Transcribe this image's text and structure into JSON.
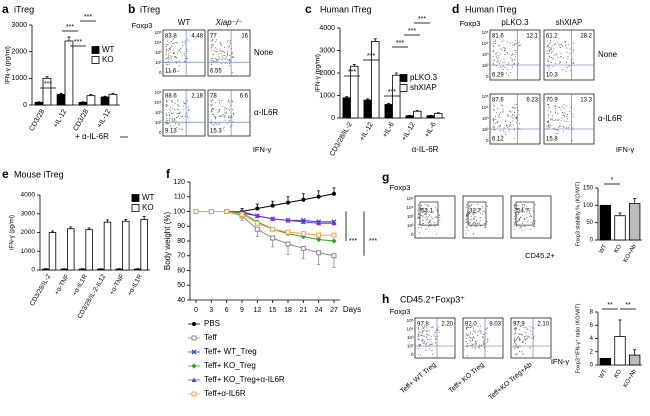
{
  "chart_data": [
    {
      "type": "bar",
      "panel": "a",
      "title": "iTreg",
      "y_label": "IFN-γ (pg/ml)",
      "categories": [
        "CD3/28",
        "+IL-12",
        "CD3/28",
        "+IL-12"
      ],
      "group_label": "+ α-IL-6R",
      "series": [
        {
          "name": "WT",
          "color": "#000000",
          "values": [
            100,
            400,
            100,
            300
          ],
          "errors": [
            20,
            40,
            20,
            30
          ]
        },
        {
          "name": "KO",
          "color": "#ffffff",
          "values": [
            1000,
            2400,
            350,
            400
          ],
          "errors": [
            60,
            150,
            40,
            40
          ]
        }
      ],
      "ylim": [
        0,
        3000
      ],
      "yticks": [
        0,
        1000,
        2000,
        3000
      ],
      "annotations": [
        "***",
        "***",
        "***",
        "***"
      ]
    },
    {
      "type": "bar",
      "panel": "c",
      "title": "Human iTreg",
      "y_label": "IFN-γ (pg/ml)",
      "categories": [
        "CD3/28/IL-2",
        "+IL-12",
        "+IL-6",
        "+IL-12",
        "+IL-6"
      ],
      "group_label": "α-IL-6R",
      "series": [
        {
          "name": "pLKO.3",
          "color": "#000000",
          "values": [
            900,
            800,
            600,
            100,
            100
          ],
          "errors": [
            50,
            50,
            50,
            20,
            20
          ]
        },
        {
          "name": "shXIAP",
          "color": "#ffffff",
          "values": [
            2300,
            3400,
            1900,
            300,
            200
          ],
          "errors": [
            80,
            120,
            100,
            30,
            30
          ]
        }
      ],
      "ylim": [
        0,
        4000
      ],
      "yticks": [
        0,
        1000,
        2000,
        3000,
        4000
      ],
      "annotations": [
        "***",
        "***",
        "***",
        "***",
        "***",
        "***"
      ]
    },
    {
      "type": "bar",
      "panel": "e",
      "title": "Mouse iTreg",
      "y_label": "IFN-γ (pg/ml)",
      "categories": [
        "CD3/28/IL-2",
        "+α-TNF",
        "+α-IL1R",
        "CD3/28/IL-2-IL12",
        "+α-TNF",
        "+α-IL1R"
      ],
      "series": [
        {
          "name": "WT",
          "color": "#000000",
          "values": [
            50,
            50,
            50,
            50,
            50,
            50
          ],
          "errors": [
            20,
            20,
            20,
            20,
            20,
            20
          ]
        },
        {
          "name": "KO",
          "color": "#ffffff",
          "values": [
            2000,
            2200,
            2150,
            2550,
            2600,
            2700
          ],
          "errors": [
            80,
            100,
            90,
            120,
            100,
            150
          ]
        }
      ],
      "ylim": [
        0,
        4000
      ],
      "yticks": [
        0,
        1000,
        2000,
        3000,
        4000
      ]
    },
    {
      "type": "line",
      "panel": "f",
      "y_label": "Body weight (%)",
      "x_label": "Days",
      "x": [
        0,
        3,
        6,
        9,
        12,
        15,
        18,
        21,
        24,
        27
      ],
      "xlim": [
        0,
        27
      ],
      "xticks": [
        0,
        3,
        6,
        9,
        12,
        15,
        18,
        21,
        24,
        27
      ],
      "ylim": [
        40,
        120
      ],
      "yticks": [
        40,
        50,
        60,
        70,
        80,
        90,
        100,
        110,
        120
      ],
      "series": [
        {
          "name": "PBS",
          "color": "#000000",
          "marker": "circle",
          "values": [
            100,
            100,
            100,
            100,
            102,
            104,
            106,
            108,
            110,
            112
          ],
          "errors": [
            0,
            0,
            0,
            2,
            3,
            3,
            4,
            4,
            4,
            4
          ]
        },
        {
          "name": "Teff",
          "color": "#888888",
          "marker": "square",
          "values": [
            100,
            100,
            100,
            97,
            88,
            82,
            78,
            75,
            72,
            70
          ],
          "errors": [
            0,
            0,
            0,
            3,
            5,
            6,
            7,
            7,
            8,
            8
          ]
        },
        {
          "name": "Teff+ WT_Treg",
          "color": "#2b3ec8",
          "marker": "cross",
          "values": [
            100,
            100,
            100,
            99,
            97,
            95,
            94,
            94,
            93,
            93
          ]
        },
        {
          "name": "Teff+ KO_Treg",
          "color": "#3a9a2a",
          "marker": "diamond",
          "values": [
            100,
            100,
            100,
            99,
            93,
            88,
            85,
            83,
            81,
            80
          ]
        },
        {
          "name": "Teff+ KO_Treg+α-IL6R",
          "color": "#8a2be2",
          "marker": "triangle",
          "values": [
            100,
            100,
            100,
            100,
            97,
            95,
            94,
            93,
            92,
            92
          ]
        },
        {
          "name": "Teff+α-IL6R",
          "color": "#f0a040",
          "marker": "square",
          "values": [
            100,
            100,
            100,
            98,
            92,
            88,
            86,
            85,
            84,
            84
          ]
        }
      ],
      "annotations": [
        "***",
        "***"
      ]
    },
    {
      "type": "bar",
      "y_label": "Foxp3 stability % (KO/WT)",
      "categories": [
        "WT",
        "KO",
        "KO+Ab"
      ],
      "values": [
        100,
        70,
        105
      ],
      "errors": [
        null,
        8,
        15
      ],
      "colors": [
        "#000000",
        "#ffffff",
        "#bbbbbb"
      ],
      "ylim": [
        0,
        150
      ],
      "yticks": [
        0,
        50,
        100,
        150
      ],
      "annotations": [
        "*"
      ]
    },
    {
      "type": "bar",
      "y_label": "Foxp3⁺IFN-γ⁺ ratio (KO/WT)",
      "categories": [
        "WT",
        "KO",
        "KO+Ab"
      ],
      "values": [
        1,
        4.3,
        1.5
      ],
      "errors": [
        null,
        2.5,
        0.8
      ],
      "colors": [
        "#000000",
        "#ffffff",
        "#bbbbbb"
      ],
      "ylim": [
        0,
        8
      ],
      "yticks": [
        0,
        2,
        4,
        6,
        8
      ],
      "annotations": [
        "**",
        "**"
      ]
    }
  ],
  "flow_panels": [
    {
      "panel": "b",
      "title": "iTreg",
      "columns": [
        "WT",
        "Xiap⁻/⁻"
      ],
      "rows": [
        "None",
        "α-IL6R"
      ],
      "y_label": "Foxp3",
      "x_label": "IFN-γ",
      "axis_ticks": [
        "10⁵",
        "10⁴",
        "10³",
        "10²",
        "0"
      ],
      "plots": [
        [
          83.8,
          4.48,
          11.6
        ],
        [
          77,
          16,
          6.55
        ],
        [
          88.6,
          2.18,
          9.13
        ],
        [
          78,
          6.6,
          15.3
        ]
      ]
    },
    {
      "panel": "d",
      "title": "Human iTreg",
      "columns": [
        "pLKO.3",
        "shXIAP"
      ],
      "rows": [
        "None",
        "α-IL6R"
      ],
      "y_label": "Foxp3",
      "x_label": "IFN-γ",
      "axis_ticks": [
        "10⁵",
        "10⁴",
        "10³",
        "10²",
        "0"
      ],
      "plots": [
        [
          81.6,
          12.1,
          6.29
        ],
        [
          61.2,
          28.2,
          10.3
        ],
        [
          87.6,
          6.23,
          6.12
        ],
        [
          70.9,
          13.3,
          15.8
        ]
      ]
    },
    {
      "panel": "g",
      "y_label": "Foxp3",
      "x_label": "CD45.2+",
      "axis_ticks": [
        "10⁵",
        "10⁴",
        "10³",
        "10²",
        "0"
      ],
      "plots": [
        [
          53.1
        ],
        [
          32.7
        ],
        [
          54.7
        ]
      ]
    },
    {
      "panel": "h",
      "title": "CD45.2⁺Foxp3⁺",
      "columns": [
        "Teff+ WT Treg",
        "Teff+ KO Treg",
        "Teff+KO Treg+Ab"
      ],
      "y_label": "Foxp3",
      "x_label": "IFN-γ",
      "axis_ticks": [
        "10⁵",
        "10⁴",
        "10³",
        "10²",
        "0"
      ],
      "plots": [
        [
          97.8,
          "2.20"
        ],
        [
          "92.0",
          8.03
        ],
        [
          97.9,
          "2.10"
        ]
      ]
    }
  ]
}
